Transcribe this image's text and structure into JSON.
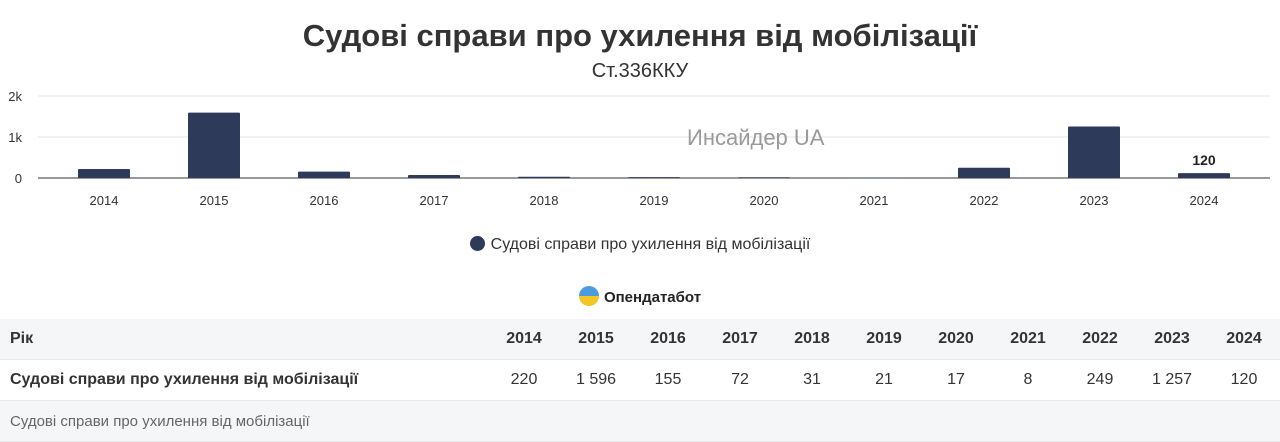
{
  "chart_data": {
    "type": "bar",
    "title": "Судові справи про ухилення від мобілізації",
    "subtitle": "Ст.336ККУ",
    "categories": [
      "2014",
      "2015",
      "2016",
      "2017",
      "2018",
      "2019",
      "2020",
      "2021",
      "2022",
      "2023",
      "2024"
    ],
    "series": [
      {
        "name": "Судові справи про ухилення від мобілізації",
        "values": [
          220,
          1596,
          155,
          72,
          31,
          21,
          17,
          8,
          249,
          1257,
          120
        ],
        "color": "#2e3a59"
      }
    ],
    "yticks": [
      "0",
      "1k",
      "2k"
    ],
    "ylim": [
      0,
      2000
    ],
    "grid": true,
    "legend": "bottom",
    "data_labels": {
      "2024": "120"
    }
  },
  "watermark": "Инсайдер UA",
  "brand": "Опендатабот",
  "table": {
    "header_label": "Рік",
    "years": [
      "2014",
      "2015",
      "2016",
      "2017",
      "2018",
      "2019",
      "2020",
      "2021",
      "2022",
      "2023",
      "2024"
    ],
    "row_label": "Судові справи про ухилення від мобілізації",
    "values": [
      "220",
      "1 596",
      "155",
      "72",
      "31",
      "21",
      "17",
      "8",
      "249",
      "1 257",
      "120"
    ],
    "footer": "Судові справи про ухилення від мобілізації"
  }
}
